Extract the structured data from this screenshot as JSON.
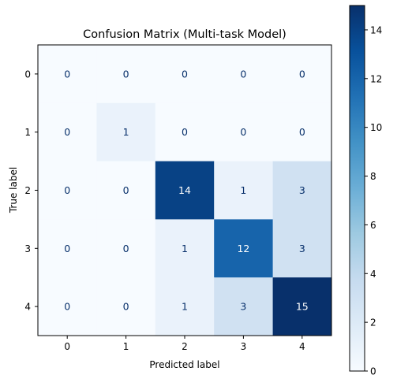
{
  "chart_data": {
    "type": "heatmap",
    "title": "Confusion Matrix (Multi-task Model)",
    "xlabel": "Predicted label",
    "ylabel": "True label",
    "x_categories": [
      "0",
      "1",
      "2",
      "3",
      "4"
    ],
    "y_categories": [
      "0",
      "1",
      "2",
      "3",
      "4"
    ],
    "values": [
      [
        0,
        0,
        0,
        0,
        0
      ],
      [
        0,
        1,
        0,
        0,
        0
      ],
      [
        0,
        0,
        14,
        1,
        3
      ],
      [
        0,
        0,
        1,
        12,
        3
      ],
      [
        0,
        0,
        1,
        3,
        15
      ]
    ],
    "colormap": "Blues",
    "colorbar": {
      "range": [
        0,
        15
      ],
      "ticks": [
        "0",
        "2",
        "4",
        "6",
        "8",
        "10",
        "12",
        "14"
      ],
      "tick_values": [
        0,
        2,
        4,
        6,
        8,
        10,
        12,
        14
      ]
    },
    "text_colors": {
      "light_cell": "#08306b",
      "dark_cell": "#ffffff"
    }
  }
}
